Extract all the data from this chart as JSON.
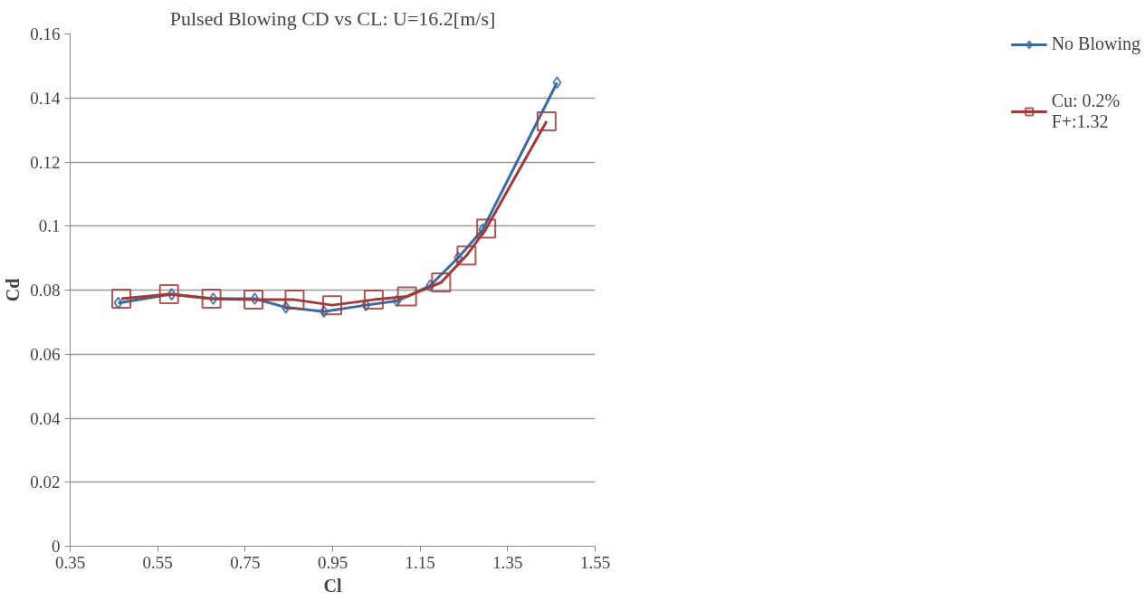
{
  "chart_data": {
    "type": "line",
    "title": "Pulsed Blowing CD vs CL: U=16.2[m/s]",
    "xlabel": "Cl",
    "ylabel": "Cd",
    "xlim": [
      0.35,
      1.55
    ],
    "xticks": [
      0.35,
      0.55,
      0.75,
      0.95,
      1.15,
      1.35,
      1.55
    ],
    "ylim": [
      0,
      0.16
    ],
    "yticks": [
      0,
      0.02,
      0.04,
      0.06,
      0.08,
      0.1,
      0.12,
      0.14,
      0.16
    ],
    "grid": "y",
    "legend": "right",
    "series": [
      {
        "name": "No Blowing",
        "color": "#3b6aa0",
        "marker": "diamond",
        "x": [
          0.46,
          0.582,
          0.677,
          0.772,
          0.843,
          0.93,
          1.026,
          1.097,
          1.173,
          1.237,
          1.293,
          1.463
        ],
        "values": [
          0.076,
          0.0787,
          0.0773,
          0.0773,
          0.0746,
          0.0733,
          0.0753,
          0.0766,
          0.0814,
          0.0901,
          0.0989,
          0.1448
        ]
      },
      {
        "name": "Cu: 0.2%\nF+:1.32",
        "color": "#a33a3a",
        "marker": "square",
        "x": [
          0.467,
          0.576,
          0.673,
          0.769,
          0.863,
          0.949,
          1.044,
          1.12,
          1.198,
          1.256,
          1.301,
          1.439
        ],
        "values": [
          0.0773,
          0.0787,
          0.0773,
          0.077,
          0.077,
          0.0753,
          0.077,
          0.078,
          0.0824,
          0.0908,
          0.0992,
          0.1327
        ]
      }
    ]
  }
}
